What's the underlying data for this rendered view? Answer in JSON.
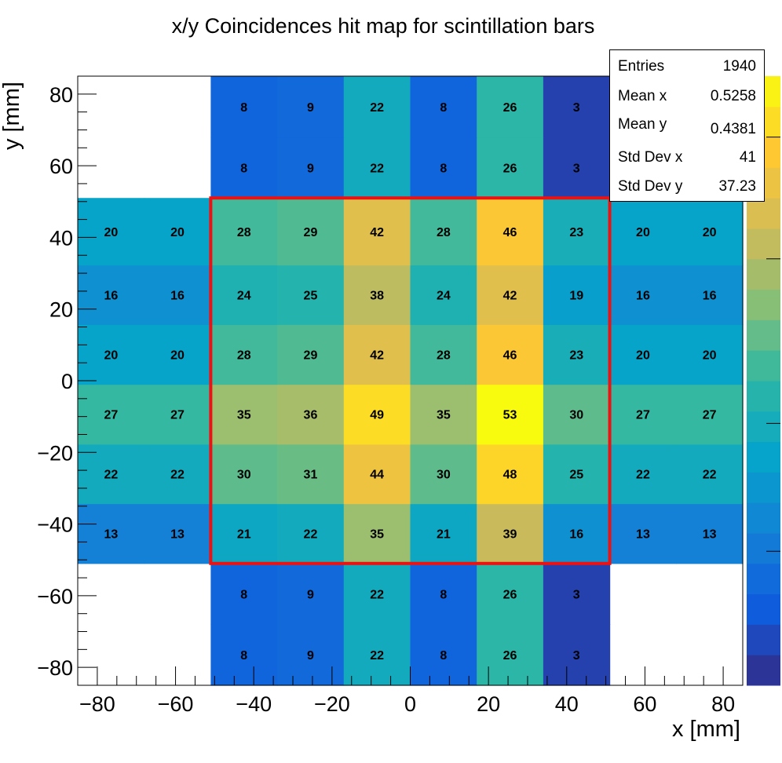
{
  "chart_data": {
    "type": "heatmap",
    "title": "x/y Coincidences hit map for scintillation bars",
    "xlabel": "x [mm]",
    "ylabel": "y [mm]",
    "xlim": [
      -85,
      85
    ],
    "ylim": [
      -85,
      85
    ],
    "xticks": [
      -80,
      -60,
      -40,
      -20,
      0,
      20,
      40,
      60,
      80
    ],
    "yticks": [
      -80,
      -60,
      -40,
      -20,
      0,
      20,
      40,
      60,
      80
    ],
    "xtick_labels": [
      "−80",
      "−60",
      "−40",
      "−20",
      "0",
      "20",
      "40",
      "60",
      "80"
    ],
    "ytick_labels": [
      "−80",
      "−60",
      "−40",
      "−20",
      "0",
      "20",
      "40",
      "60",
      "80"
    ],
    "zlim": [
      0,
      53
    ],
    "x_edges": [
      -85,
      -68,
      -51,
      -34,
      -17,
      0,
      17,
      34,
      51,
      68,
      85
    ],
    "y_edges": [
      -85,
      -68,
      -51,
      -34.3,
      -17.7,
      -1,
      15.7,
      32.3,
      51,
      68,
      85
    ],
    "cells": [
      [
        null,
        null,
        8,
        9,
        22,
        8,
        26,
        3,
        null,
        null
      ],
      [
        null,
        null,
        8,
        9,
        22,
        8,
        26,
        3,
        null,
        null
      ],
      [
        13,
        13,
        21,
        22,
        35,
        21,
        39,
        16,
        13,
        13
      ],
      [
        22,
        22,
        30,
        31,
        44,
        30,
        48,
        25,
        22,
        22
      ],
      [
        27,
        27,
        35,
        36,
        49,
        35,
        53,
        30,
        27,
        27
      ],
      [
        20,
        20,
        28,
        29,
        42,
        28,
        46,
        23,
        20,
        20
      ],
      [
        16,
        16,
        24,
        25,
        38,
        24,
        42,
        19,
        16,
        16
      ],
      [
        20,
        20,
        28,
        29,
        42,
        28,
        46,
        23,
        20,
        20
      ],
      [
        null,
        null,
        8,
        9,
        22,
        8,
        26,
        3,
        null,
        null
      ],
      [
        null,
        null,
        8,
        9,
        22,
        8,
        26,
        3,
        null,
        null
      ]
    ],
    "overlay_box": {
      "x": [
        -51,
        51
      ],
      "y": [
        -51,
        51
      ],
      "color": "#ee1111"
    },
    "colormap": [
      "#352a87",
      "#0f5cdd",
      "#1481d6",
      "#06a4ca",
      "#2eb7a4",
      "#87bf77",
      "#d1bb59",
      "#fec832",
      "#f9fb0e"
    ],
    "stats": {
      "entries_label": "Entries",
      "entries": "1940",
      "mean_x_label": "Mean x",
      "mean_x": "0.5258",
      "mean_y_label": "Mean y",
      "mean_y": "0.4381",
      "std_x_label": "Std Dev x",
      "std_x": "41",
      "std_y_label": "Std Dev y",
      "std_y": "37.23"
    }
  }
}
